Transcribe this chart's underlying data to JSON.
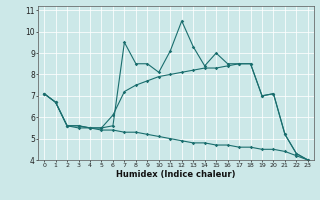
{
  "xlabel": "Humidex (Indice chaleur)",
  "bg_color": "#cce8e8",
  "line_color": "#1a6e6e",
  "xlim": [
    -0.5,
    23.5
  ],
  "ylim": [
    4,
    11.2
  ],
  "xticks": [
    0,
    1,
    2,
    3,
    4,
    5,
    6,
    7,
    8,
    9,
    10,
    11,
    12,
    13,
    14,
    15,
    16,
    17,
    18,
    19,
    20,
    21,
    22,
    23
  ],
  "yticks": [
    4,
    5,
    6,
    7,
    8,
    9,
    10,
    11
  ],
  "series1_x": [
    0,
    1,
    2,
    3,
    4,
    5,
    6,
    7,
    8,
    9,
    10,
    11,
    12,
    13,
    14,
    15,
    16,
    17,
    18,
    19,
    20,
    21,
    22,
    23
  ],
  "series1_y": [
    7.1,
    6.7,
    5.6,
    5.6,
    5.5,
    5.5,
    5.6,
    9.5,
    8.5,
    8.5,
    8.1,
    9.1,
    10.5,
    9.3,
    8.4,
    9.0,
    8.5,
    8.5,
    8.5,
    7.0,
    7.1,
    5.2,
    4.3,
    4.0
  ],
  "series2_x": [
    0,
    1,
    2,
    3,
    4,
    5,
    6,
    7,
    8,
    9,
    10,
    11,
    12,
    13,
    14,
    15,
    16,
    17,
    18,
    19,
    20,
    21,
    22,
    23
  ],
  "series2_y": [
    7.1,
    6.7,
    5.6,
    5.6,
    5.5,
    5.5,
    6.1,
    7.2,
    7.5,
    7.7,
    7.9,
    8.0,
    8.1,
    8.2,
    8.3,
    8.3,
    8.4,
    8.5,
    8.5,
    7.0,
    7.1,
    5.2,
    4.3,
    4.0
  ],
  "series3_x": [
    0,
    1,
    2,
    3,
    4,
    5,
    6,
    7,
    8,
    9,
    10,
    11,
    12,
    13,
    14,
    15,
    16,
    17,
    18,
    19,
    20,
    21,
    22,
    23
  ],
  "series3_y": [
    7.1,
    6.7,
    5.6,
    5.5,
    5.5,
    5.4,
    5.4,
    5.3,
    5.3,
    5.2,
    5.1,
    5.0,
    4.9,
    4.8,
    4.8,
    4.7,
    4.7,
    4.6,
    4.6,
    4.5,
    4.5,
    4.4,
    4.2,
    4.0
  ],
  "figwidth": 3.2,
  "figheight": 2.0,
  "dpi": 100
}
